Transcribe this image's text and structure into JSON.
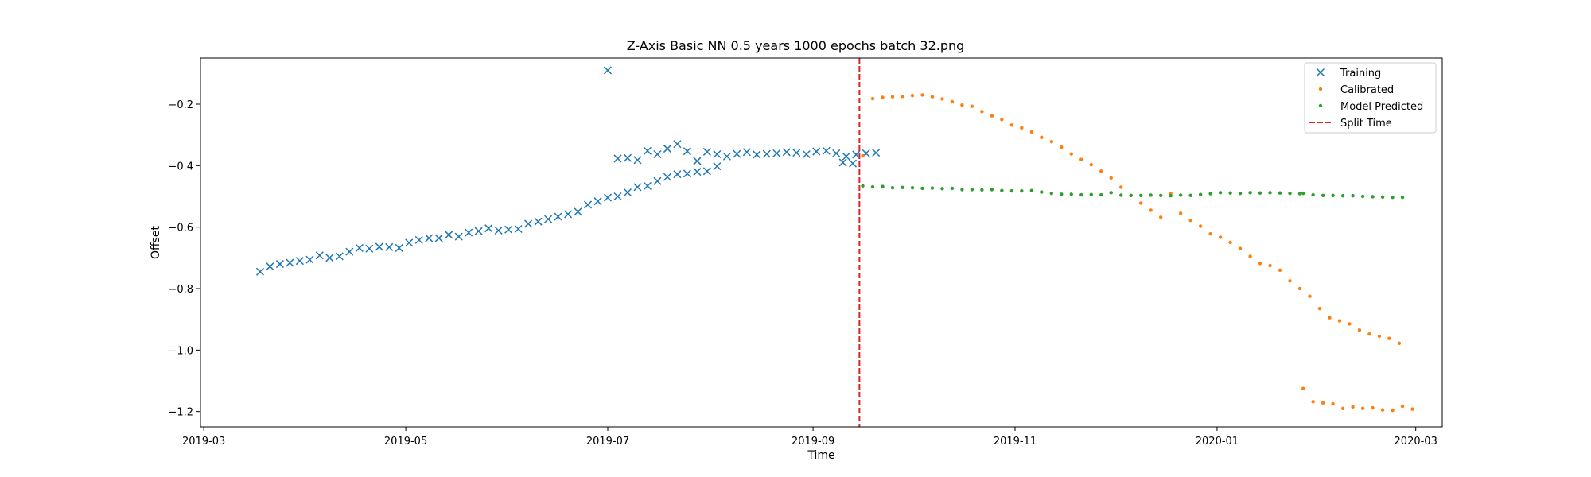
{
  "chart_data": {
    "type": "scatter",
    "title": "Z-Axis Basic NN 0.5 years 1000 epochs batch 32.png",
    "xlabel": "Time",
    "ylabel": "Offset",
    "x_axis_type": "date",
    "xlim": [
      "2019-02-28",
      "2020-03-09"
    ],
    "ylim": [
      -1.25,
      -0.05
    ],
    "x_ticks": [
      "2019-03-01",
      "2019-05-01",
      "2019-07-01",
      "2019-09-01",
      "2019-11-01",
      "2020-01-01",
      "2020-03-01"
    ],
    "x_tick_labels": [
      "2019-03",
      "2019-05",
      "2019-07",
      "2019-09",
      "2019-11",
      "2020-01",
      "2020-03"
    ],
    "y_ticks": [
      -1.2,
      -1.0,
      -0.8,
      -0.6,
      -0.4,
      -0.2
    ],
    "y_tick_labels": [
      "−1.2",
      "−1.0",
      "−0.8",
      "−0.6",
      "−0.4",
      "−0.2"
    ],
    "grid": false,
    "legend_position": "top-right",
    "split_time": {
      "name": "Split Time",
      "x": "2019-09-15",
      "color": "#d62728",
      "style": "dashed"
    },
    "series": [
      {
        "name": "Training",
        "marker": "x",
        "color": "#1f77b4",
        "points": [
          [
            "2019-03-18",
            -0.745
          ],
          [
            "2019-03-21",
            -0.728
          ],
          [
            "2019-03-24",
            -0.72
          ],
          [
            "2019-03-27",
            -0.716
          ],
          [
            "2019-03-30",
            -0.71
          ],
          [
            "2019-04-02",
            -0.706
          ],
          [
            "2019-04-05",
            -0.692
          ],
          [
            "2019-04-08",
            -0.7
          ],
          [
            "2019-04-11",
            -0.695
          ],
          [
            "2019-04-14",
            -0.68
          ],
          [
            "2019-04-17",
            -0.668
          ],
          [
            "2019-04-20",
            -0.67
          ],
          [
            "2019-04-23",
            -0.664
          ],
          [
            "2019-04-26",
            -0.665
          ],
          [
            "2019-04-29",
            -0.668
          ],
          [
            "2019-05-02",
            -0.651
          ],
          [
            "2019-05-05",
            -0.642
          ],
          [
            "2019-05-08",
            -0.636
          ],
          [
            "2019-05-11",
            -0.636
          ],
          [
            "2019-05-14",
            -0.625
          ],
          [
            "2019-05-17",
            -0.631
          ],
          [
            "2019-05-20",
            -0.618
          ],
          [
            "2019-05-23",
            -0.613
          ],
          [
            "2019-05-26",
            -0.604
          ],
          [
            "2019-05-29",
            -0.611
          ],
          [
            "2019-06-01",
            -0.608
          ],
          [
            "2019-06-04",
            -0.606
          ],
          [
            "2019-06-07",
            -0.589
          ],
          [
            "2019-06-10",
            -0.582
          ],
          [
            "2019-06-13",
            -0.574
          ],
          [
            "2019-06-16",
            -0.566
          ],
          [
            "2019-06-19",
            -0.558
          ],
          [
            "2019-06-22",
            -0.55
          ],
          [
            "2019-06-25",
            -0.527
          ],
          [
            "2019-06-28",
            -0.516
          ],
          [
            "2019-07-01",
            -0.504
          ],
          [
            "2019-07-04",
            -0.5
          ],
          [
            "2019-07-07",
            -0.487
          ],
          [
            "2019-07-10",
            -0.47
          ],
          [
            "2019-07-13",
            -0.466
          ],
          [
            "2019-07-16",
            -0.45
          ],
          [
            "2019-07-19",
            -0.437
          ],
          [
            "2019-07-22",
            -0.428
          ],
          [
            "2019-07-25",
            -0.426
          ],
          [
            "2019-07-28",
            -0.42
          ],
          [
            "2019-07-31",
            -0.418
          ],
          [
            "2019-08-03",
            -0.402
          ],
          [
            "2019-07-01",
            -0.09
          ],
          [
            "2019-07-04",
            -0.377
          ],
          [
            "2019-07-07",
            -0.375
          ],
          [
            "2019-07-10",
            -0.382
          ],
          [
            "2019-07-13",
            -0.352
          ],
          [
            "2019-07-16",
            -0.363
          ],
          [
            "2019-07-19",
            -0.345
          ],
          [
            "2019-07-22",
            -0.33
          ],
          [
            "2019-07-25",
            -0.353
          ],
          [
            "2019-07-28",
            -0.385
          ],
          [
            "2019-07-31",
            -0.355
          ],
          [
            "2019-08-03",
            -0.363
          ],
          [
            "2019-08-06",
            -0.37
          ],
          [
            "2019-08-09",
            -0.362
          ],
          [
            "2019-08-12",
            -0.356
          ],
          [
            "2019-08-15",
            -0.364
          ],
          [
            "2019-08-18",
            -0.362
          ],
          [
            "2019-08-21",
            -0.36
          ],
          [
            "2019-08-24",
            -0.356
          ],
          [
            "2019-08-27",
            -0.358
          ],
          [
            "2019-08-30",
            -0.363
          ],
          [
            "2019-09-02",
            -0.354
          ],
          [
            "2019-09-05",
            -0.352
          ],
          [
            "2019-09-08",
            -0.36
          ],
          [
            "2019-09-11",
            -0.37
          ],
          [
            "2019-09-14",
            -0.364
          ],
          [
            "2019-09-17",
            -0.36
          ],
          [
            "2019-09-20",
            -0.358
          ],
          [
            "2019-09-10",
            -0.39
          ],
          [
            "2019-09-13",
            -0.393
          ]
        ]
      },
      {
        "name": "Calibrated",
        "marker": "dot",
        "color": "#ff7f0e",
        "points": [
          [
            "2019-09-16",
            -0.368
          ],
          [
            "2019-09-19",
            -0.182
          ],
          [
            "2019-09-22",
            -0.178
          ],
          [
            "2019-09-25",
            -0.176
          ],
          [
            "2019-09-28",
            -0.175
          ],
          [
            "2019-10-01",
            -0.172
          ],
          [
            "2019-10-04",
            -0.17
          ],
          [
            "2019-10-07",
            -0.176
          ],
          [
            "2019-10-10",
            -0.183
          ],
          [
            "2019-10-13",
            -0.192
          ],
          [
            "2019-10-16",
            -0.203
          ],
          [
            "2019-10-19",
            -0.207
          ],
          [
            "2019-10-22",
            -0.224
          ],
          [
            "2019-10-25",
            -0.238
          ],
          [
            "2019-10-28",
            -0.25
          ],
          [
            "2019-10-31",
            -0.268
          ],
          [
            "2019-11-03",
            -0.277
          ],
          [
            "2019-11-06",
            -0.29
          ],
          [
            "2019-11-09",
            -0.308
          ],
          [
            "2019-11-12",
            -0.322
          ],
          [
            "2019-11-15",
            -0.34
          ],
          [
            "2019-11-18",
            -0.362
          ],
          [
            "2019-11-21",
            -0.38
          ],
          [
            "2019-11-24",
            -0.397
          ],
          [
            "2019-11-27",
            -0.418
          ],
          [
            "2019-11-30",
            -0.44
          ],
          [
            "2019-12-03",
            -0.47
          ],
          [
            "2019-12-06",
            -0.497
          ],
          [
            "2019-12-09",
            -0.522
          ],
          [
            "2019-12-12",
            -0.545
          ],
          [
            "2019-12-15",
            -0.568
          ],
          [
            "2019-12-18",
            -0.49
          ],
          [
            "2019-12-21",
            -0.555
          ],
          [
            "2019-12-24",
            -0.578
          ],
          [
            "2019-12-27",
            -0.597
          ],
          [
            "2019-12-30",
            -0.622
          ],
          [
            "2020-01-02",
            -0.633
          ],
          [
            "2020-01-05",
            -0.65
          ],
          [
            "2020-01-08",
            -0.67
          ],
          [
            "2020-01-11",
            -0.695
          ],
          [
            "2020-01-14",
            -0.718
          ],
          [
            "2020-01-17",
            -0.725
          ],
          [
            "2020-01-20",
            -0.74
          ],
          [
            "2020-01-23",
            -0.775
          ],
          [
            "2020-01-26",
            -0.8
          ],
          [
            "2020-01-29",
            -0.825
          ],
          [
            "2020-02-01",
            -0.865
          ],
          [
            "2020-02-04",
            -0.895
          ],
          [
            "2020-02-07",
            -0.905
          ],
          [
            "2020-02-10",
            -0.915
          ],
          [
            "2020-02-13",
            -0.935
          ],
          [
            "2020-02-16",
            -0.948
          ],
          [
            "2020-02-19",
            -0.955
          ],
          [
            "2020-02-22",
            -0.962
          ],
          [
            "2020-02-25",
            -0.978
          ],
          [
            "2020-01-27",
            -1.125
          ],
          [
            "2020-01-30",
            -1.168
          ],
          [
            "2020-02-02",
            -1.172
          ],
          [
            "2020-02-05",
            -1.175
          ],
          [
            "2020-02-08",
            -1.19
          ],
          [
            "2020-02-11",
            -1.185
          ],
          [
            "2020-02-14",
            -1.19
          ],
          [
            "2020-02-17",
            -1.188
          ],
          [
            "2020-02-20",
            -1.195
          ],
          [
            "2020-02-23",
            -1.196
          ],
          [
            "2020-02-26",
            -1.183
          ],
          [
            "2020-02-29",
            -1.192
          ]
        ]
      },
      {
        "name": "Model Predicted",
        "marker": "dot",
        "color": "#2ca02c",
        "points": [
          [
            "2019-09-16",
            -0.466
          ],
          [
            "2019-09-19",
            -0.469
          ],
          [
            "2019-09-22",
            -0.468
          ],
          [
            "2019-09-25",
            -0.472
          ],
          [
            "2019-09-28",
            -0.471
          ],
          [
            "2019-10-01",
            -0.472
          ],
          [
            "2019-10-04",
            -0.474
          ],
          [
            "2019-10-07",
            -0.473
          ],
          [
            "2019-10-10",
            -0.475
          ],
          [
            "2019-10-13",
            -0.474
          ],
          [
            "2019-10-16",
            -0.478
          ],
          [
            "2019-10-19",
            -0.478
          ],
          [
            "2019-10-22",
            -0.479
          ],
          [
            "2019-10-25",
            -0.478
          ],
          [
            "2019-10-28",
            -0.481
          ],
          [
            "2019-10-31",
            -0.482
          ],
          [
            "2019-11-03",
            -0.482
          ],
          [
            "2019-11-06",
            -0.481
          ],
          [
            "2019-11-09",
            -0.486
          ],
          [
            "2019-11-12",
            -0.49
          ],
          [
            "2019-11-15",
            -0.493
          ],
          [
            "2019-11-18",
            -0.493
          ],
          [
            "2019-11-21",
            -0.495
          ],
          [
            "2019-11-24",
            -0.494
          ],
          [
            "2019-11-27",
            -0.495
          ],
          [
            "2019-11-30",
            -0.488
          ],
          [
            "2019-12-03",
            -0.496
          ],
          [
            "2019-12-06",
            -0.497
          ],
          [
            "2019-12-09",
            -0.497
          ],
          [
            "2019-12-12",
            -0.496
          ],
          [
            "2019-12-15",
            -0.497
          ],
          [
            "2019-12-18",
            -0.498
          ],
          [
            "2019-12-21",
            -0.496
          ],
          [
            "2019-12-24",
            -0.497
          ],
          [
            "2019-12-27",
            -0.494
          ],
          [
            "2019-12-30",
            -0.491
          ],
          [
            "2020-01-02",
            -0.488
          ],
          [
            "2020-01-05",
            -0.489
          ],
          [
            "2020-01-08",
            -0.49
          ],
          [
            "2020-01-11",
            -0.488
          ],
          [
            "2020-01-14",
            -0.489
          ],
          [
            "2020-01-17",
            -0.488
          ],
          [
            "2020-01-20",
            -0.489
          ],
          [
            "2020-01-23",
            -0.49
          ],
          [
            "2020-01-26",
            -0.491
          ],
          [
            "2020-01-27",
            -0.49
          ],
          [
            "2020-01-30",
            -0.495
          ],
          [
            "2020-02-02",
            -0.497
          ],
          [
            "2020-02-05",
            -0.497
          ],
          [
            "2020-02-08",
            -0.498
          ],
          [
            "2020-02-11",
            -0.498
          ],
          [
            "2020-02-14",
            -0.5
          ],
          [
            "2020-02-17",
            -0.501
          ],
          [
            "2020-02-20",
            -0.502
          ],
          [
            "2020-02-23",
            -0.503
          ],
          [
            "2020-02-26",
            -0.503
          ]
        ]
      }
    ]
  }
}
